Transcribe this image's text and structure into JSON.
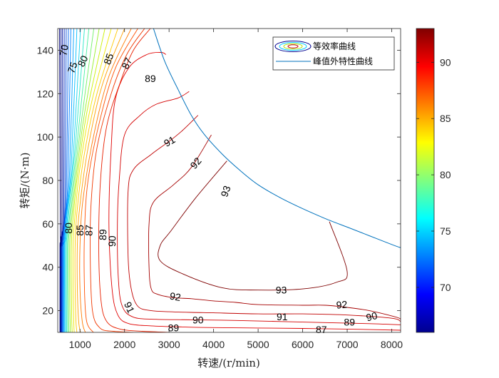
{
  "chart_data": {
    "type": "contour",
    "xlabel": "转速/(r/min)",
    "ylabel": "转矩/(N·m)",
    "xlim": [
      500,
      8200
    ],
    "ylim": [
      10,
      150
    ],
    "xticks": [
      1000,
      2000,
      3000,
      4000,
      5000,
      6000,
      7000,
      8000
    ],
    "yticks": [
      20,
      40,
      60,
      80,
      100,
      120,
      140
    ],
    "legend": {
      "placement": "top-right",
      "entries": [
        "等效率曲线",
        "峰值外特性曲线"
      ]
    },
    "colorbar": {
      "range": [
        66,
        93
      ],
      "ticks": [
        70,
        75,
        80,
        85,
        90
      ],
      "colormap": "jet"
    },
    "peak_curve": {
      "name": "峰值外特性曲线",
      "color": "#0072BD",
      "x": [
        2650,
        2900,
        3200,
        3500,
        3800,
        4200,
        4600,
        5000,
        5500,
        6000,
        6500,
        7000,
        7500,
        8000,
        8200
      ],
      "y": [
        150,
        135,
        122,
        110,
        101,
        92,
        84.5,
        78,
        72,
        67,
        62.5,
        58.5,
        54.5,
        50.5,
        49
      ]
    },
    "contours": [
      {
        "level": 93,
        "color": "#7F0000",
        "x": [
          4300,
          3600,
          3050,
          2800,
          2800,
          3300,
          4200,
          5000,
          6000,
          6750,
          7000,
          6600
        ],
        "y": [
          89,
          72,
          57,
          50,
          43,
          37,
          30.5,
          29.5,
          30,
          33,
          38,
          61
        ]
      },
      {
        "level": 92,
        "color": "#A50000",
        "x": [
          3950,
          3500,
          3100,
          2650,
          2550,
          2550,
          2600,
          2750,
          3100,
          3500,
          4000,
          4500,
          5000,
          6000,
          6500,
          7000,
          7500,
          8100,
          8200
        ],
        "y": [
          101,
          86,
          78,
          70,
          60,
          40,
          30,
          27.5,
          26,
          25.5,
          24.5,
          23.8,
          22.8,
          22.5,
          22.5,
          21.5,
          20,
          17,
          16
        ]
      },
      {
        "level": 91,
        "color": "#C00000",
        "x": [
          3650,
          3300,
          3000,
          2600,
          2200,
          2080,
          2080,
          2150,
          2300,
          2600,
          3000,
          3500,
          4000,
          5000,
          6000,
          7000,
          8000,
          8200
        ],
        "y": [
          110,
          103,
          98,
          92,
          85,
          75,
          45,
          30,
          22,
          20,
          19.5,
          19.2,
          19,
          18.5,
          18.5,
          18,
          16.5,
          15
        ]
      },
      {
        "level": 90,
        "color": "#D40000",
        "x": [
          3450,
          3200,
          2700,
          2350,
          2000,
          1880,
          1840,
          1860,
          1950,
          2200,
          2700,
          3500,
          4500,
          5500,
          6500,
          7500,
          8200
        ],
        "y": [
          121,
          118,
          115,
          110,
          101,
          80,
          60,
          35,
          22,
          17,
          16,
          15.8,
          15.5,
          15,
          14.5,
          14,
          13.5
        ]
      },
      {
        "level": 89,
        "color": "#E00000",
        "x": [
          2930,
          2820,
          2500,
          2100,
          1800,
          1700,
          1650,
          1720,
          1850,
          2100,
          2600,
          3300,
          4000,
          5000,
          6000,
          7000,
          8200
        ],
        "y": [
          138,
          139,
          138,
          132,
          118,
          95,
          60,
          30,
          18,
          14,
          13,
          12.5,
          12.2,
          12,
          11.8,
          11.5,
          11
        ]
      },
      {
        "level": 88,
        "color": "#E82000",
        "x": [
          2580,
          2200,
          1900,
          1600,
          1460,
          1420,
          1470,
          1600,
          1900,
          2400,
          3000
        ],
        "y": [
          150,
          140,
          125,
          105,
          80,
          50,
          25,
          15,
          11.5,
          10.5,
          10
        ]
      },
      {
        "level": 87,
        "color": "#F03800",
        "x": [
          2450,
          2050,
          1700,
          1380,
          1250,
          1230,
          1280,
          1450,
          1750,
          2200
        ],
        "y": [
          150,
          138,
          120,
          95,
          70,
          45,
          20,
          12,
          10.5,
          10
        ]
      },
      {
        "level": 86,
        "color": "#FF5000",
        "x": [
          2300,
          1800,
          1450,
          1180,
          1100,
          1100,
          1150,
          1300
        ],
        "y": [
          150,
          132,
          108,
          80,
          55,
          30,
          15,
          10
        ]
      },
      {
        "level": 85,
        "color": "#FF7A00",
        "x": [
          2150,
          1650,
          1300,
          1060,
          1000,
          1000,
          1050,
          1120
        ],
        "y": [
          150,
          128,
          100,
          70,
          50,
          30,
          15,
          10
        ]
      },
      {
        "level": 84,
        "color": "#FFA000",
        "x": [
          2000,
          1500,
          1180,
          990,
          940,
          940,
          970,
          1010
        ],
        "y": [
          150,
          124,
          95,
          67,
          50,
          30,
          15,
          10
        ]
      },
      {
        "level": 83,
        "color": "#FFC800",
        "x": [
          1850,
          1380,
          1080,
          930,
          890,
          890,
          910,
          930
        ],
        "y": [
          150,
          120,
          90,
          65,
          50,
          30,
          15,
          10
        ]
      },
      {
        "level": 82,
        "color": "#F0E600",
        "x": [
          1700,
          1260,
          1000,
          880,
          845,
          845,
          860,
          870
        ],
        "y": [
          150,
          116,
          86,
          62,
          50,
          30,
          15,
          10
        ]
      },
      {
        "level": 81,
        "color": "#C8F000",
        "x": [
          1560,
          1160,
          940,
          835,
          805,
          805,
          815,
          825
        ],
        "y": [
          150,
          112,
          82,
          60,
          50,
          30,
          15,
          10
        ]
      },
      {
        "level": 80,
        "color": "#96F02A",
        "x": [
          1430,
          1080,
          890,
          795,
          770,
          770,
          778,
          785
        ],
        "y": [
          150,
          108,
          78,
          58,
          50,
          30,
          15,
          10
        ]
      },
      {
        "level": 79,
        "color": "#6EF064",
        "x": [
          1310,
          1010,
          845,
          762,
          742,
          742,
          748,
          752
        ],
        "y": [
          150,
          104,
          75,
          57,
          50,
          30,
          15,
          10
        ]
      },
      {
        "level": 78,
        "color": "#46F0A0",
        "x": [
          1200,
          950,
          805,
          735,
          717,
          717,
          721,
          724
        ],
        "y": [
          150,
          100,
          72,
          56,
          50,
          30,
          15,
          10
        ]
      },
      {
        "level": 77,
        "color": "#28E6C8",
        "x": [
          1100,
          895,
          770,
          710,
          694,
          694,
          697,
          699
        ],
        "y": [
          150,
          96,
          70,
          55,
          50,
          30,
          15,
          10
        ]
      },
      {
        "level": 76,
        "color": "#14D2F0",
        "x": [
          1010,
          850,
          740,
          688,
          673,
          673,
          676,
          677
        ],
        "y": [
          150,
          92,
          68,
          54,
          50,
          30,
          15,
          10
        ]
      },
      {
        "level": 75,
        "color": "#00BEFF",
        "x": [
          930,
          805,
          712,
          667,
          654,
          654,
          656,
          657
        ],
        "y": [
          150,
          88,
          66,
          53,
          50,
          30,
          15,
          10
        ]
      },
      {
        "level": 74,
        "color": "#00A0FF",
        "x": [
          860,
          765,
          688,
          648,
          637,
          637,
          638,
          639
        ],
        "y": [
          150,
          84,
          64,
          52,
          50,
          30,
          15,
          10
        ]
      },
      {
        "level": 73,
        "color": "#0082FF",
        "x": [
          795,
          728,
          665,
          630,
          620,
          620,
          621,
          622
        ],
        "y": [
          150,
          80,
          62,
          51,
          50,
          30,
          15,
          10
        ]
      },
      {
        "level": 72,
        "color": "#0064F0",
        "x": [
          740,
          695,
          645,
          614,
          605,
          605,
          606,
          606
        ],
        "y": [
          150,
          76,
          60,
          51,
          50,
          30,
          15,
          10
        ]
      },
      {
        "level": 71,
        "color": "#0046D7",
        "x": [
          690,
          665,
          627,
          600,
          592,
          592,
          592,
          592
        ],
        "y": [
          150,
          72,
          58,
          50,
          50,
          30,
          15,
          10
        ]
      },
      {
        "level": 70,
        "color": "#0028BE",
        "x": [
          645,
          638,
          610,
          588,
          580,
          580,
          580,
          580
        ],
        "y": [
          150,
          68,
          57,
          50,
          50,
          30,
          15,
          10
        ]
      },
      {
        "level": 69,
        "color": "#0014A0",
        "x": [
          605,
          612,
          596,
          577,
          569,
          569,
          569,
          569
        ],
        "y": [
          150,
          64,
          56,
          50,
          50,
          30,
          15,
          10
        ]
      },
      {
        "level": 68,
        "color": "#000A8C",
        "x": [
          570,
          585,
          583,
          567,
          559,
          559,
          559,
          559
        ],
        "y": [
          150,
          60,
          55,
          50,
          50,
          30,
          15,
          10
        ]
      },
      {
        "level": 67,
        "color": "#000078",
        "x": [
          540,
          558,
          570,
          557,
          550,
          550,
          550,
          550
        ],
        "y": [
          150,
          57,
          54,
          50,
          50,
          30,
          15,
          10
        ]
      }
    ],
    "contour_labels": [
      {
        "text": "70",
        "x": 640,
        "y": 140,
        "angle": -80
      },
      {
        "text": "75",
        "x": 830,
        "y": 132,
        "angle": -70
      },
      {
        "text": "80",
        "x": 1060,
        "y": 135,
        "angle": -65
      },
      {
        "text": "85",
        "x": 1640,
        "y": 136,
        "angle": -70
      },
      {
        "text": "87",
        "x": 2050,
        "y": 134,
        "angle": -65
      },
      {
        "text": "89",
        "x": 2580,
        "y": 127,
        "angle": 0
      },
      {
        "text": "91",
        "x": 3010,
        "y": 98,
        "angle": -30
      },
      {
        "text": "92",
        "x": 3600,
        "y": 88,
        "angle": -50
      },
      {
        "text": "93",
        "x": 4270,
        "y": 75,
        "angle": -70
      },
      {
        "text": "80",
        "x": 740,
        "y": 58,
        "angle": -90
      },
      {
        "text": "85",
        "x": 1000,
        "y": 57,
        "angle": -90
      },
      {
        "text": "87",
        "x": 1200,
        "y": 57,
        "angle": -88
      },
      {
        "text": "89",
        "x": 1510,
        "y": 55,
        "angle": -88
      },
      {
        "text": "90",
        "x": 1720,
        "y": 52,
        "angle": -88
      },
      {
        "text": "91",
        "x": 2110,
        "y": 21.5,
        "angle": 65
      },
      {
        "text": "92",
        "x": 3140,
        "y": 26.5,
        "angle": 10
      },
      {
        "text": "93",
        "x": 5520,
        "y": 29.5,
        "angle": 0
      },
      {
        "text": "92",
        "x": 6880,
        "y": 22.8,
        "angle": -5
      },
      {
        "text": "91",
        "x": 5540,
        "y": 17.2,
        "angle": 0
      },
      {
        "text": "90",
        "x": 3650,
        "y": 15.8,
        "angle": 0
      },
      {
        "text": "90",
        "x": 7550,
        "y": 17.3,
        "angle": -15
      },
      {
        "text": "89",
        "x": 3100,
        "y": 12.2,
        "angle": 0
      },
      {
        "text": "89",
        "x": 7050,
        "y": 14.7,
        "angle": 0
      },
      {
        "text": "87",
        "x": 6420,
        "y": 11.3,
        "angle": 0
      }
    ]
  }
}
